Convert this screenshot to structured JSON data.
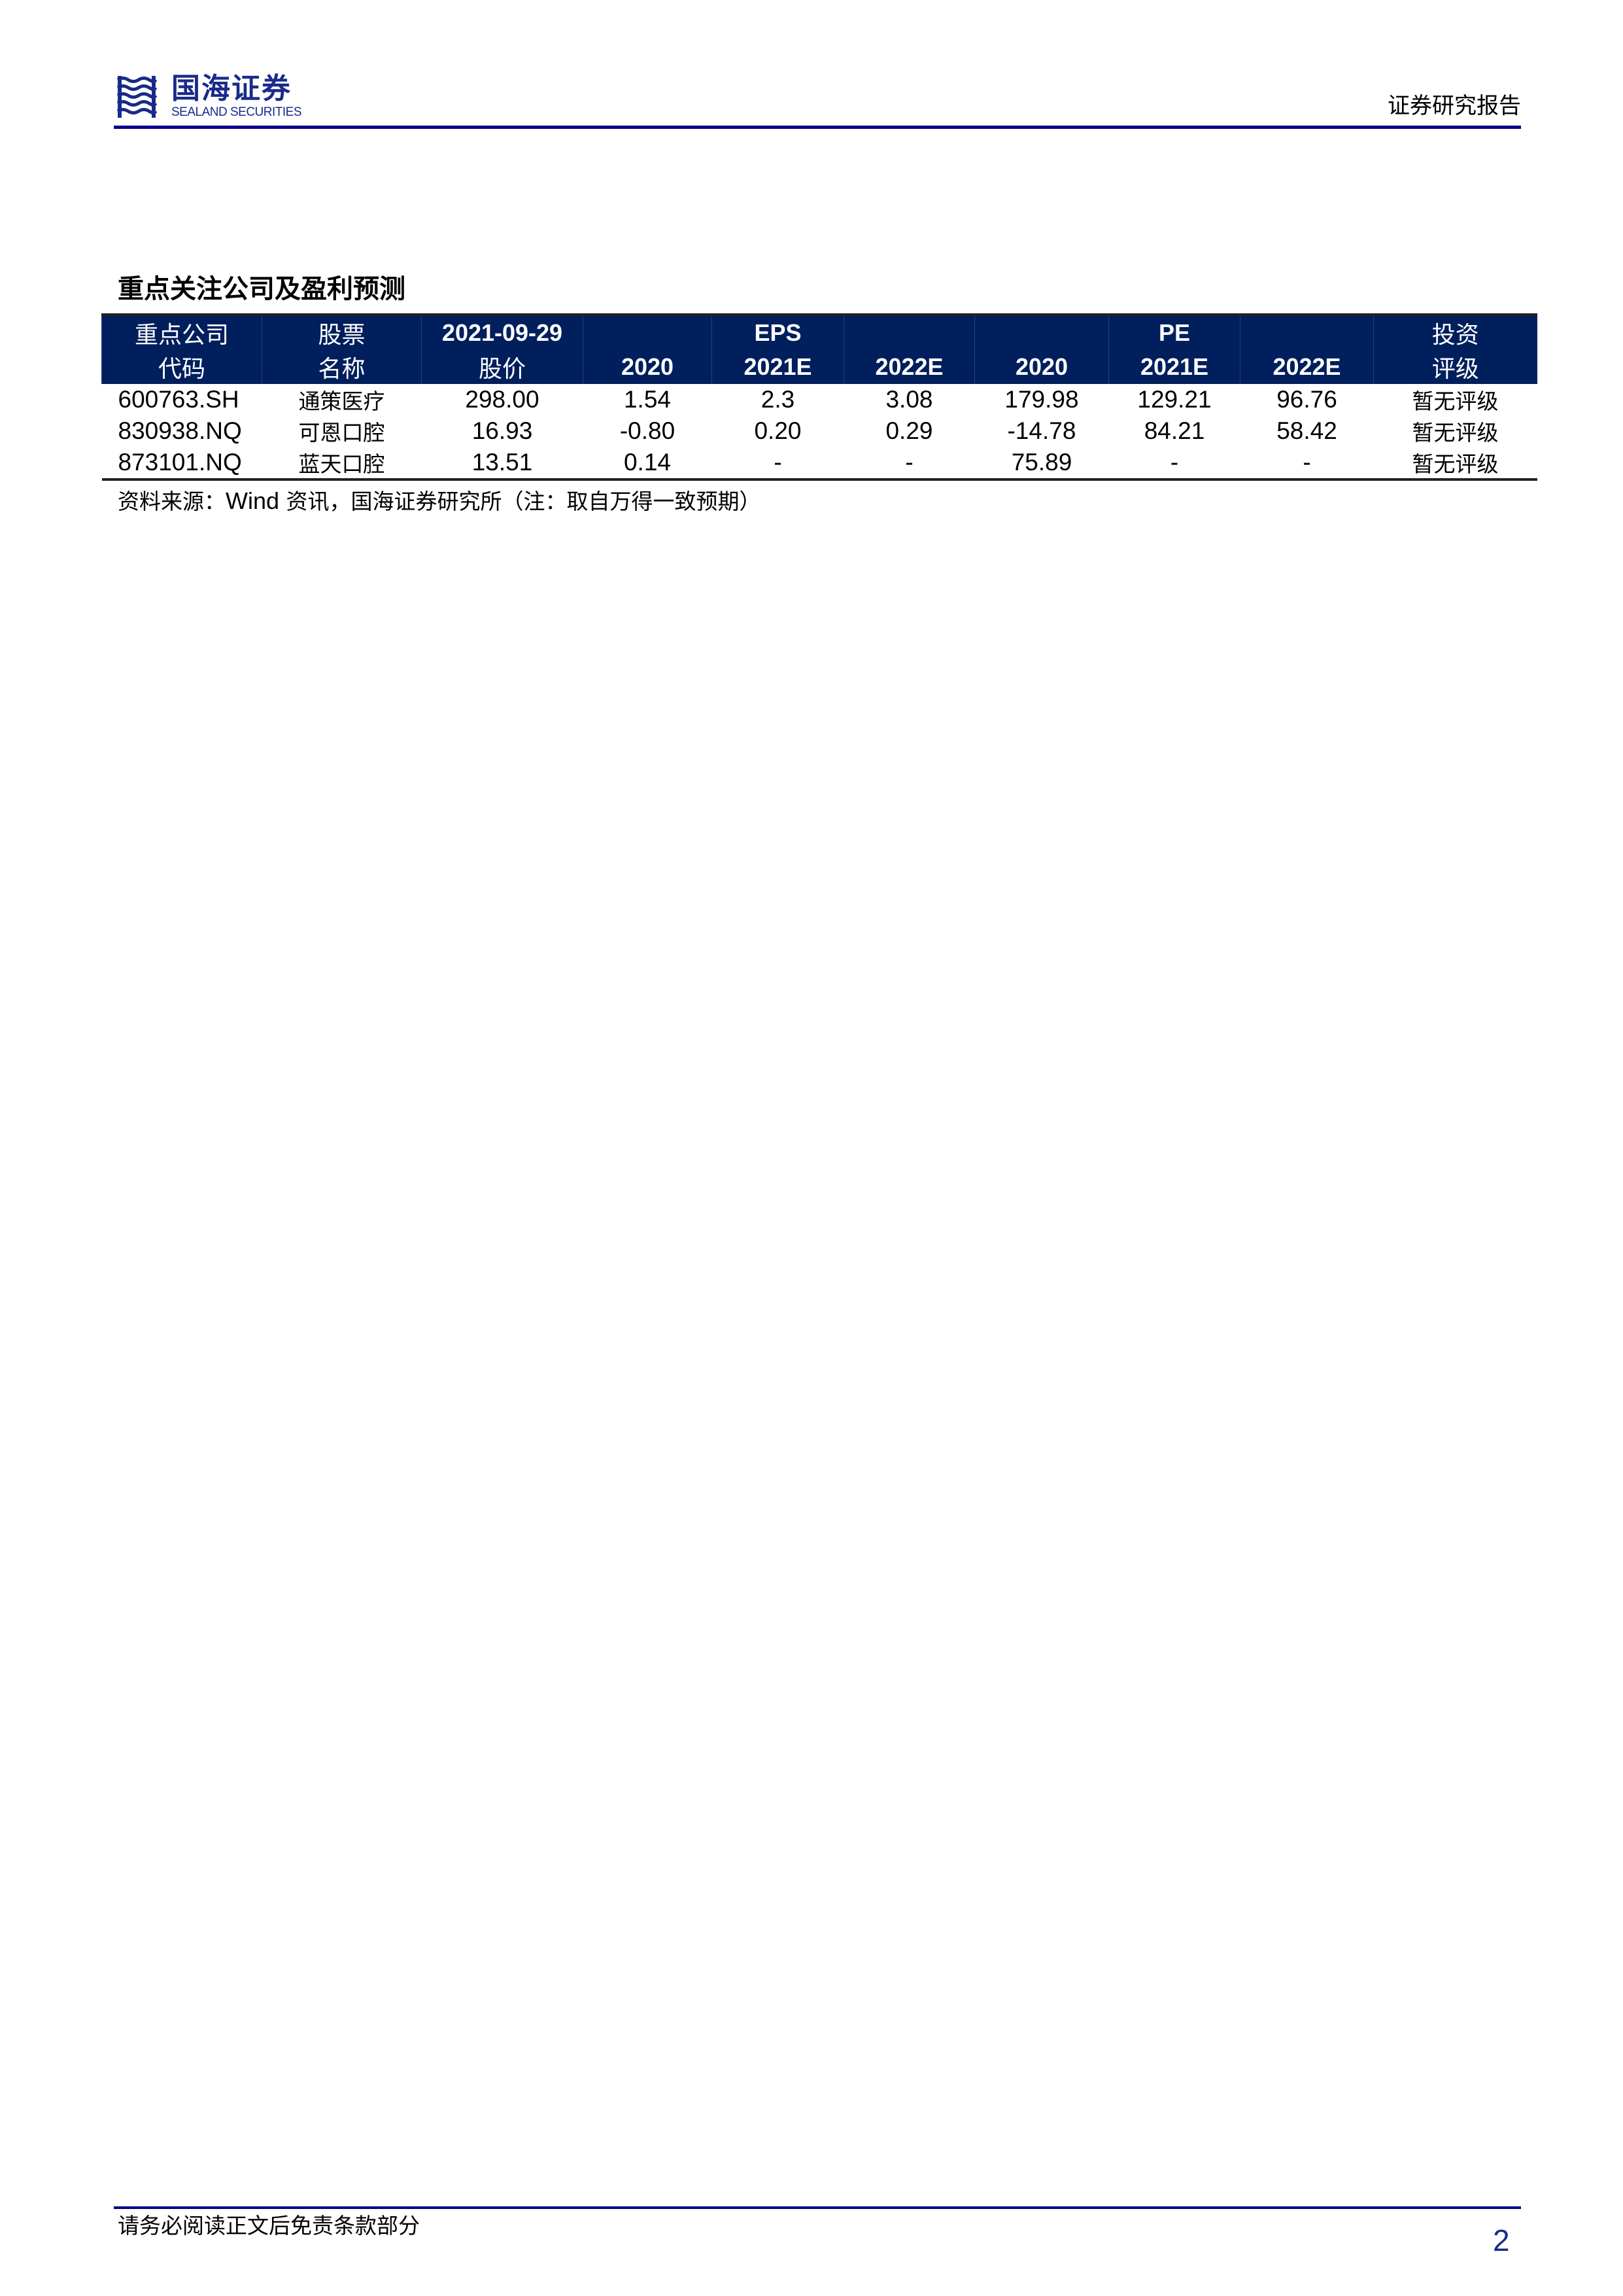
{
  "header": {
    "logo_cn": "国海证券",
    "logo_en": "SEALAND SECURITIES",
    "doc_type": "证券研究报告",
    "brand_color": "#1a2a8a"
  },
  "title": "重点关注公司及盈利预测",
  "table": {
    "header_row1": [
      "重点公司",
      "股票",
      "2021-09-29",
      "",
      "EPS",
      "",
      "",
      "PE",
      "",
      "投资"
    ],
    "header_row2": [
      "代码",
      "名称",
      "股价",
      "2020",
      "2021E",
      "2022E",
      "2020",
      "2021E",
      "2022E",
      "评级"
    ],
    "rows": [
      [
        "600763.SH",
        "通策医疗",
        "298.00",
        "1.54",
        "2.3",
        "3.08",
        "179.98",
        "129.21",
        "96.76",
        "暂无评级"
      ],
      [
        "830938.NQ",
        "可恩口腔",
        "16.93",
        "-0.80",
        "0.20",
        "0.29",
        "-14.78",
        "84.21",
        "58.42",
        "暂无评级"
      ],
      [
        "873101.NQ",
        "蓝天口腔",
        "13.51",
        "0.14",
        "-",
        "-",
        "75.89",
        "-",
        "-",
        "暂无评级"
      ]
    ],
    "header_bg": "#001f5c"
  },
  "note": {
    "prefix": "资料来源：",
    "wind": "Wind",
    "suffix": " 资讯，国海证券研究所（注：取自万得一致预期）"
  },
  "footer": {
    "disclaimer": "请务必阅读正文后免责条款部分",
    "page_number": "2"
  }
}
